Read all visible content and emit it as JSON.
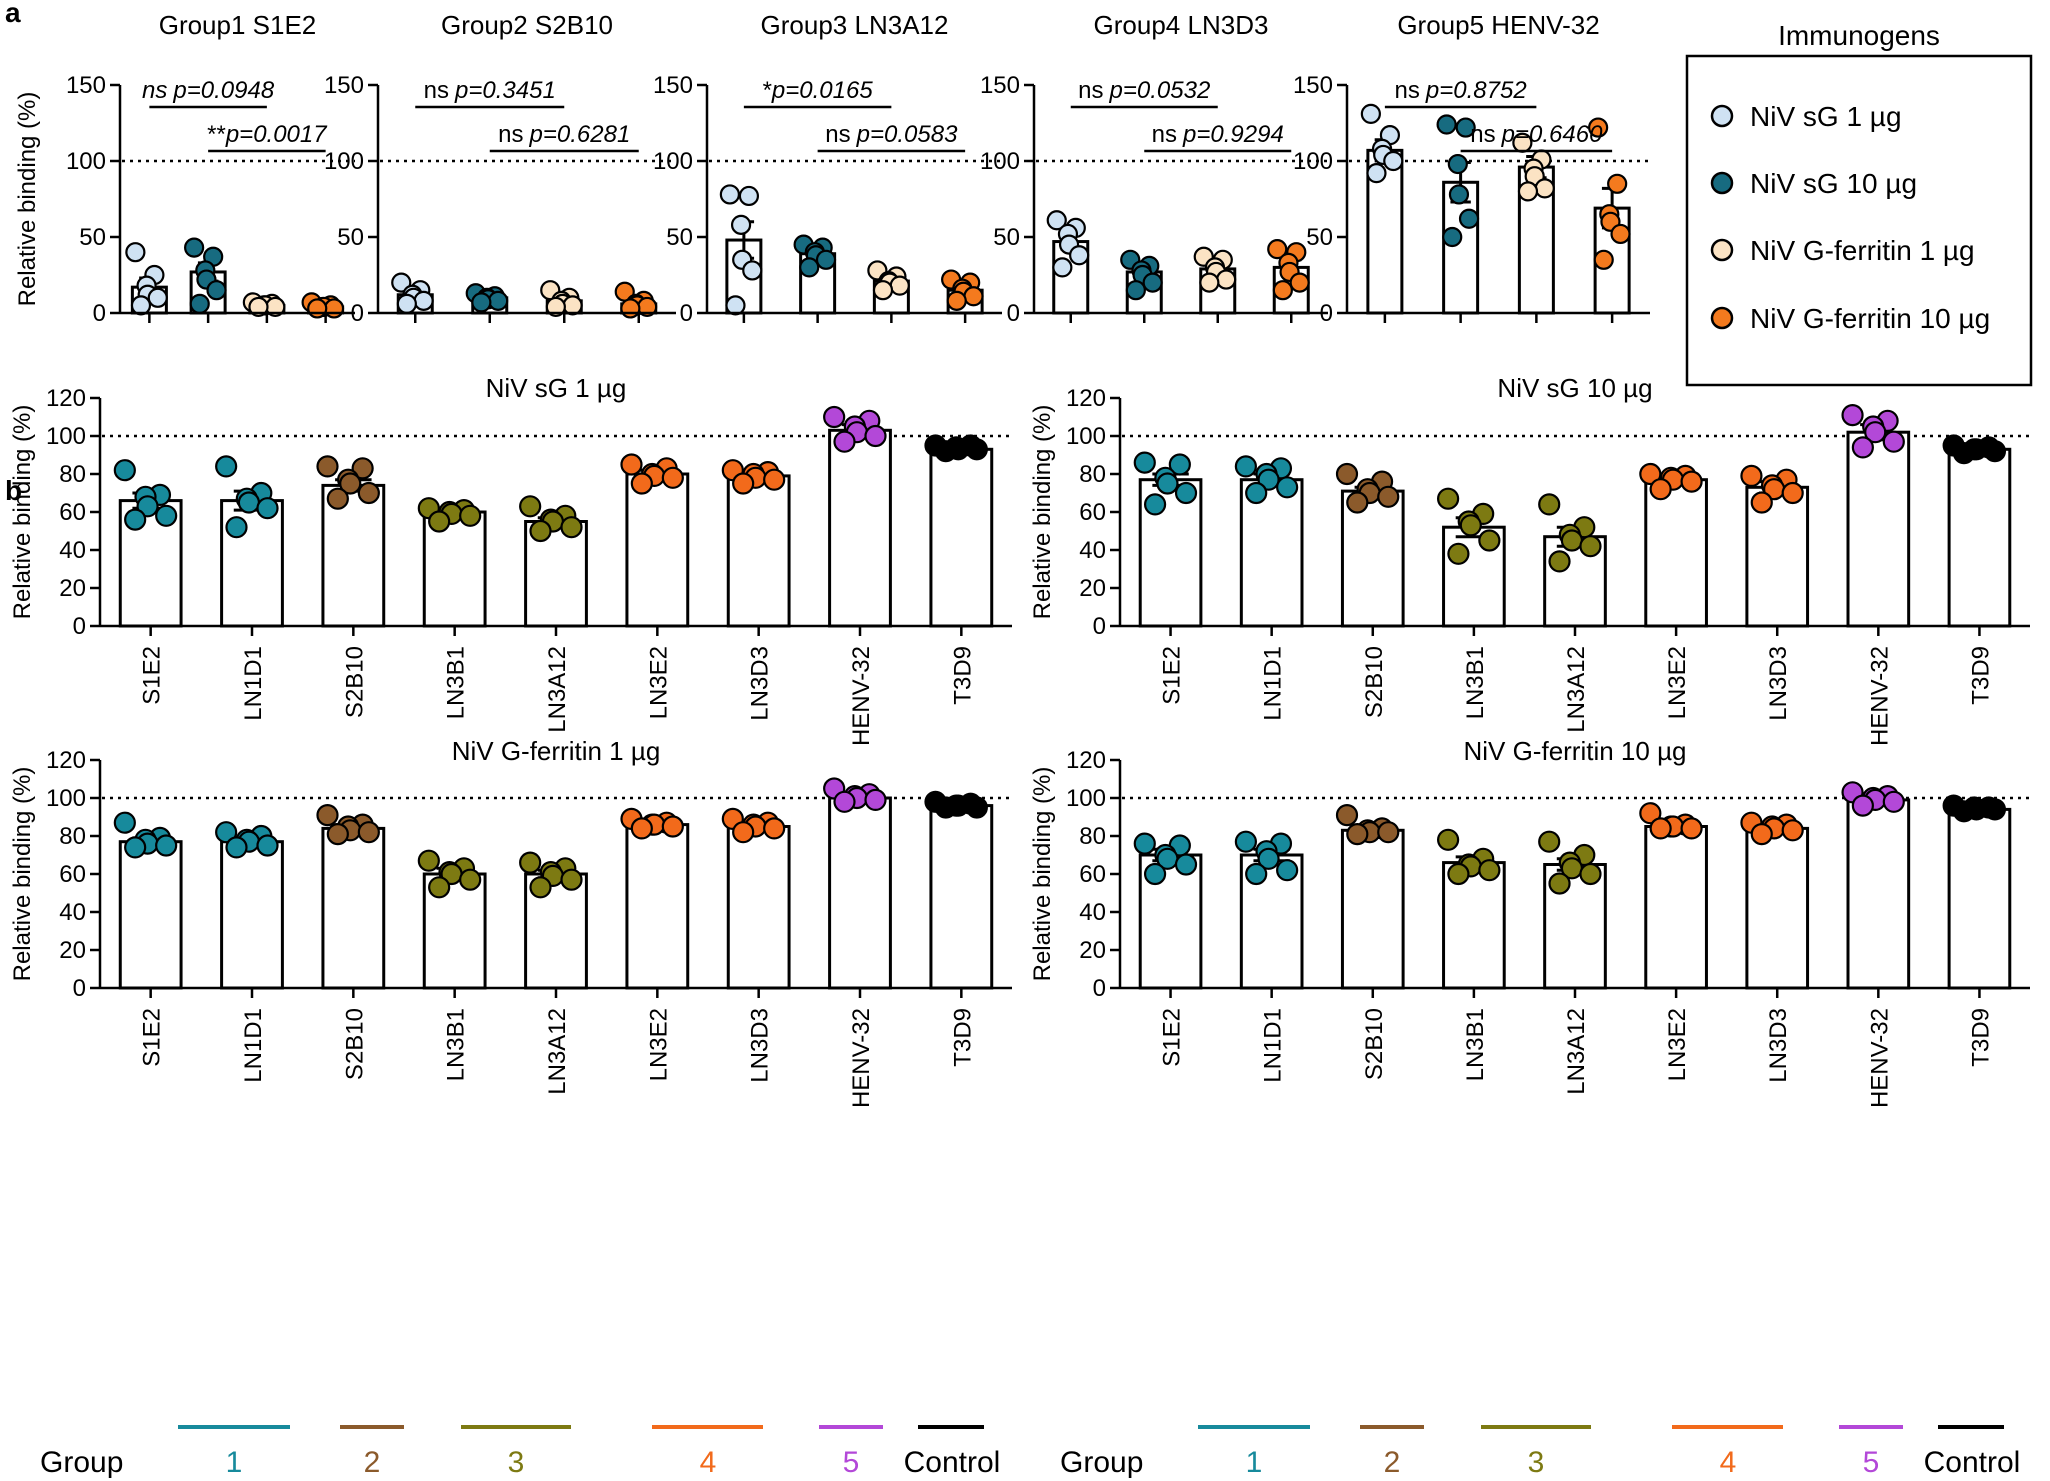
{
  "panel_labels": {
    "a": "a",
    "b": "b"
  },
  "legend": {
    "title": "Immunogens",
    "items": [
      {
        "label": "NiV sG 1 µg",
        "color": "#cfe2f3"
      },
      {
        "label": "NiV sG 10 µg",
        "color": "#176b80"
      },
      {
        "label": "NiV G-ferritin 1 µg",
        "color": "#fbe3c4"
      },
      {
        "label": "NiV G-ferritin 10 µg",
        "color": "#f47a1e"
      }
    ]
  },
  "group_legend": {
    "label": "Group",
    "groups": [
      {
        "name": "1",
        "color": "#178a9c"
      },
      {
        "name": "2",
        "color": "#8b5a2b"
      },
      {
        "name": "3",
        "color": "#7d7a12"
      },
      {
        "name": "4",
        "color": "#f26a1b"
      },
      {
        "name": "5",
        "color": "#b348d8"
      },
      {
        "name": "Control",
        "color": "#000000"
      }
    ]
  },
  "chart_data": [
    {
      "type": "bar",
      "panel": "a",
      "title": "Group1 S1E2",
      "ylabel": "Relative binding (%)",
      "ylim": [
        0,
        150
      ],
      "yticks": [
        0,
        50,
        100,
        150
      ],
      "refline": 100,
      "categories": [
        "NiV sG 1 µg",
        "NiV sG 10 µg",
        "NiV G-ferritin 1 µg",
        "NiV G-ferritin 10 µg"
      ],
      "values": [
        17,
        27,
        5,
        4
      ],
      "sem": [
        6,
        6,
        1,
        1
      ],
      "points": [
        [
          40,
          25,
          18,
          12,
          10,
          5
        ],
        [
          43,
          37,
          28,
          22,
          15,
          6
        ],
        [
          7,
          6,
          5,
          5,
          4,
          4
        ],
        [
          7,
          5,
          4,
          4,
          3,
          3
        ]
      ],
      "comparisons": [
        {
          "from": 0,
          "to": 2,
          "label_a": "ns",
          "label_b": "p=0.0948"
        },
        {
          "from": 1,
          "to": 3,
          "label_a": "**",
          "label_b": "p=0.0017"
        }
      ]
    },
    {
      "type": "bar",
      "panel": "a",
      "title": "Group2 S2B10",
      "ylabel": "Relative binding (%)",
      "ylim": [
        0,
        150
      ],
      "yticks": [
        0,
        50,
        100,
        150
      ],
      "refline": 100,
      "categories": [
        "NiV sG 1 µg",
        "NiV sG 10 µg",
        "NiV G-ferritin 1 µg",
        "NiV G-ferritin 10 µg"
      ],
      "values": [
        12,
        10,
        8,
        6
      ],
      "sem": [
        2,
        1,
        2,
        2
      ],
      "points": [
        [
          20,
          15,
          12,
          10,
          8,
          6
        ],
        [
          13,
          11,
          10,
          9,
          8,
          7
        ],
        [
          15,
          10,
          8,
          6,
          5,
          4
        ],
        [
          14,
          8,
          6,
          5,
          4,
          3
        ]
      ],
      "comparisons": [
        {
          "from": 0,
          "to": 2,
          "label_a": "ns",
          "label_b": "p=0.3451"
        },
        {
          "from": 1,
          "to": 3,
          "label_a": "ns",
          "label_b": "p=0.6281"
        }
      ]
    },
    {
      "type": "bar",
      "panel": "a",
      "title": "Group3 LN3A12",
      "ylabel": "Relative binding (%)",
      "ylim": [
        0,
        150
      ],
      "yticks": [
        0,
        50,
        100,
        150
      ],
      "refline": 100,
      "categories": [
        "NiV sG 1 µg",
        "NiV sG 10 µg",
        "NiV G-ferritin 1 µg",
        "NiV G-ferritin 10 µg"
      ],
      "values": [
        48,
        39,
        21,
        15
      ],
      "sem": [
        12,
        3,
        3,
        3
      ],
      "points": [
        [
          78,
          77,
          58,
          35,
          28,
          5
        ],
        [
          45,
          43,
          40,
          38,
          35,
          30
        ],
        [
          28,
          24,
          21,
          20,
          18,
          15
        ],
        [
          22,
          20,
          16,
          14,
          11,
          8
        ]
      ],
      "comparisons": [
        {
          "from": 0,
          "to": 2,
          "label_a": "*",
          "label_b": "p=0.0165"
        },
        {
          "from": 1,
          "to": 3,
          "label_a": "ns",
          "label_b": "p=0.0583"
        }
      ]
    },
    {
      "type": "bar",
      "panel": "a",
      "title": "Group4 LN3D3",
      "ylabel": "Relative binding (%)",
      "ylim": [
        0,
        150
      ],
      "yticks": [
        0,
        50,
        100,
        150
      ],
      "refline": 100,
      "categories": [
        "NiV sG 1 µg",
        "NiV sG 10 µg",
        "NiV G-ferritin 1 µg",
        "NiV G-ferritin 10 µg"
      ],
      "values": [
        47,
        27,
        29,
        30
      ],
      "sem": [
        5,
        3,
        3,
        5
      ],
      "points": [
        [
          61,
          56,
          52,
          45,
          38,
          30
        ],
        [
          35,
          31,
          28,
          25,
          20,
          15
        ],
        [
          37,
          35,
          30,
          27,
          22,
          20
        ],
        [
          42,
          40,
          33,
          27,
          20,
          15
        ]
      ],
      "comparisons": [
        {
          "from": 0,
          "to": 2,
          "label_a": "ns",
          "label_b": "p=0.0532"
        },
        {
          "from": 1,
          "to": 3,
          "label_a": "ns",
          "label_b": "p=0.9294"
        }
      ]
    },
    {
      "type": "bar",
      "panel": "a",
      "title": "Group5 HENV-32",
      "ylabel": "Relative binding (%)",
      "ylim": [
        0,
        150
      ],
      "yticks": [
        0,
        50,
        100,
        150
      ],
      "refline": 100,
      "categories": [
        "NiV sG 1 µg",
        "NiV sG 10 µg",
        "NiV G-ferritin 1 µg",
        "NiV G-ferritin 10 µg"
      ],
      "values": [
        107,
        86,
        96,
        69
      ],
      "sem": [
        7,
        13,
        7,
        13
      ],
      "points": [
        [
          131,
          117,
          108,
          104,
          100,
          92
        ],
        [
          124,
          122,
          98,
          78,
          62,
          50
        ],
        [
          112,
          101,
          95,
          90,
          82,
          80
        ],
        [
          122,
          85,
          65,
          60,
          52,
          35
        ]
      ],
      "comparisons": [
        {
          "from": 0,
          "to": 2,
          "label_a": "ns",
          "label_b": "p=0.8752"
        },
        {
          "from": 1,
          "to": 3,
          "label_a": "ns",
          "label_b": "p=0.6460"
        }
      ]
    },
    {
      "type": "bar",
      "panel": "b",
      "title": "NiV sG 1 µg",
      "ylabel": "Relative binding (%)",
      "ylim": [
        0,
        120
      ],
      "yticks": [
        0,
        20,
        40,
        60,
        80,
        100,
        120
      ],
      "refline": 100,
      "categories": [
        "S1E2",
        "LN1D1",
        "S2B10",
        "LN3B1",
        "LN3A12",
        "LN3E2",
        "LN3D3",
        "HENV-32",
        "T3D9"
      ],
      "values": [
        66,
        66,
        74,
        60,
        55,
        80,
        79,
        103,
        93
      ],
      "sem": [
        4,
        5,
        3,
        2,
        2,
        2,
        2,
        3,
        1
      ],
      "points": [
        [
          82,
          69,
          68,
          63,
          58,
          56
        ],
        [
          84,
          70,
          67,
          65,
          62,
          52
        ],
        [
          84,
          83,
          77,
          75,
          70,
          67
        ],
        [
          62,
          61,
          60,
          59,
          58,
          55
        ],
        [
          63,
          58,
          56,
          55,
          52,
          50
        ],
        [
          85,
          83,
          80,
          79,
          78,
          75
        ],
        [
          82,
          81,
          80,
          78,
          77,
          75
        ],
        [
          110,
          108,
          105,
          102,
          100,
          97
        ],
        [
          95,
          95,
          94,
          93,
          93,
          92
        ]
      ]
    },
    {
      "type": "bar",
      "panel": "b",
      "title": "NiV sG 10 µg",
      "ylabel": "Relative binding (%)",
      "ylim": [
        0,
        120
      ],
      "yticks": [
        0,
        20,
        40,
        60,
        80,
        100,
        120
      ],
      "refline": 100,
      "categories": [
        "S1E2",
        "LN1D1",
        "S2B10",
        "LN3B1",
        "LN3A12",
        "LN3E2",
        "LN3D3",
        "HENV-32",
        "T3D9"
      ],
      "values": [
        77,
        77,
        71,
        52,
        47,
        77,
        73,
        102,
        93
      ],
      "sem": [
        3,
        3,
        2,
        5,
        5,
        2,
        3,
        4,
        1
      ],
      "points": [
        [
          86,
          85,
          78,
          75,
          70,
          64
        ],
        [
          84,
          83,
          80,
          77,
          73,
          70
        ],
        [
          80,
          76,
          72,
          70,
          68,
          65
        ],
        [
          67,
          59,
          55,
          53,
          45,
          38
        ],
        [
          64,
          52,
          48,
          45,
          42,
          34
        ],
        [
          80,
          79,
          78,
          77,
          76,
          72
        ],
        [
          79,
          77,
          74,
          72,
          70,
          65
        ],
        [
          111,
          108,
          105,
          102,
          97,
          94
        ],
        [
          95,
          94,
          93,
          93,
          92,
          91
        ]
      ]
    },
    {
      "type": "bar",
      "panel": "b",
      "title": "NiV G-ferritin 1 µg",
      "ylabel": "Relative binding (%)",
      "ylim": [
        0,
        120
      ],
      "yticks": [
        0,
        20,
        40,
        60,
        80,
        100,
        120
      ],
      "refline": 100,
      "categories": [
        "S1E2",
        "LN1D1",
        "S2B10",
        "LN3B1",
        "LN3A12",
        "LN3E2",
        "LN3D3",
        "HENV-32",
        "T3D9"
      ],
      "values": [
        77,
        77,
        84,
        60,
        60,
        86,
        85,
        100,
        96
      ],
      "sem": [
        2,
        2,
        2,
        3,
        2,
        1,
        2,
        2,
        1
      ],
      "points": [
        [
          87,
          79,
          78,
          76,
          75,
          74
        ],
        [
          82,
          80,
          78,
          77,
          75,
          74
        ],
        [
          91,
          86,
          85,
          83,
          82,
          81
        ],
        [
          67,
          63,
          61,
          60,
          57,
          53
        ],
        [
          66,
          63,
          61,
          59,
          57,
          53
        ],
        [
          89,
          87,
          86,
          86,
          85,
          84
        ],
        [
          89,
          87,
          86,
          85,
          84,
          82
        ],
        [
          105,
          102,
          101,
          100,
          99,
          98
        ],
        [
          98,
          97,
          96,
          96,
          95,
          95
        ]
      ]
    },
    {
      "type": "bar",
      "panel": "b",
      "title": "NiV G-ferritin 10 µg",
      "ylabel": "Relative binding (%)",
      "ylim": [
        0,
        120
      ],
      "yticks": [
        0,
        20,
        40,
        60,
        80,
        100,
        120
      ],
      "refline": 100,
      "categories": [
        "S1E2",
        "LN1D1",
        "S2B10",
        "LN3B1",
        "LN3A12",
        "LN3E2",
        "LN3D3",
        "HENV-32",
        "T3D9"
      ],
      "values": [
        70,
        70,
        83,
        66,
        65,
        85,
        84,
        99,
        94
      ],
      "sem": [
        3,
        3,
        2,
        3,
        3,
        1,
        2,
        2,
        1
      ],
      "points": [
        [
          76,
          75,
          70,
          68,
          65,
          60
        ],
        [
          77,
          76,
          72,
          68,
          62,
          60
        ],
        [
          91,
          84,
          83,
          82,
          82,
          81
        ],
        [
          78,
          68,
          65,
          64,
          62,
          60
        ],
        [
          77,
          70,
          66,
          63,
          60,
          55
        ],
        [
          92,
          86,
          85,
          85,
          84,
          84
        ],
        [
          87,
          86,
          85,
          84,
          83,
          81
        ],
        [
          103,
          101,
          100,
          99,
          98,
          96
        ],
        [
          96,
          95,
          95,
          94,
          94,
          93
        ]
      ]
    }
  ]
}
